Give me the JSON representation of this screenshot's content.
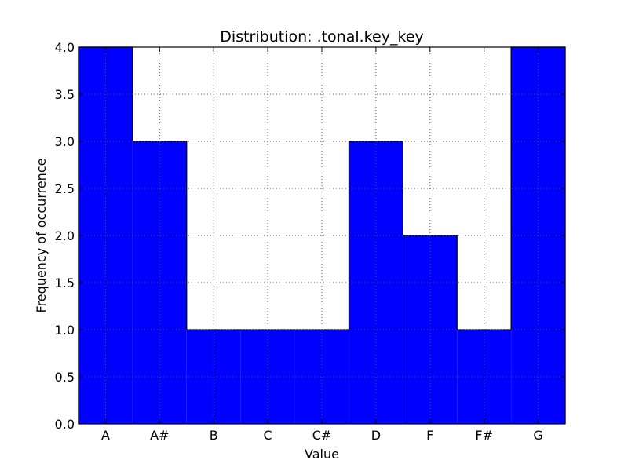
{
  "chart_data": {
    "type": "bar",
    "title": "Distribution: .tonal.key_key",
    "xlabel": "Value",
    "ylabel": "Frequency of occurrence",
    "categories": [
      "A",
      "A#",
      "B",
      "C",
      "C#",
      "D",
      "F",
      "F#",
      "G"
    ],
    "values": [
      4,
      3,
      1,
      1,
      1,
      3,
      2,
      1,
      4
    ],
    "ylim": [
      0,
      4
    ],
    "yticks": [
      "0.0",
      "0.5",
      "1.0",
      "1.5",
      "2.0",
      "2.5",
      "3.0",
      "3.5",
      "4.0"
    ],
    "grid": true,
    "bar_color": "#0000ff",
    "edge_color": "#000000",
    "grid_color": "#555555"
  }
}
